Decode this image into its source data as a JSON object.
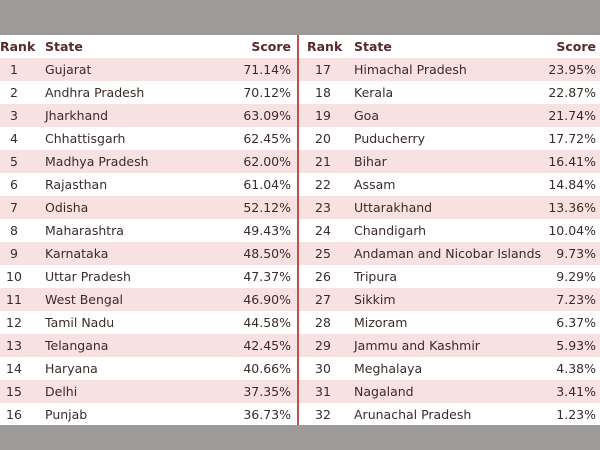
{
  "tables": [
    {
      "header": [
        "Rank",
        "State",
        "Score"
      ],
      "rows": [
        [
          "1",
          "Gujarat",
          "71.14%"
        ],
        [
          "2",
          "Andhra Pradesh",
          "70.12%"
        ],
        [
          "3",
          "Jharkhand",
          "63.09%"
        ],
        [
          "4",
          "Chhattisgarh",
          "62.45%"
        ],
        [
          "5",
          "Madhya Pradesh",
          "62.00%"
        ],
        [
          "6",
          "Rajasthan",
          "61.04%"
        ],
        [
          "7",
          "Odisha",
          "52.12%"
        ],
        [
          "8",
          "Maharashtra",
          "49.43%"
        ],
        [
          "9",
          "Karnataka",
          "48.50%"
        ],
        [
          "10",
          "Uttar Pradesh",
          "47.37%"
        ],
        [
          "11",
          "West Bengal",
          "46.90%"
        ],
        [
          "12",
          "Tamil Nadu",
          "44.58%"
        ],
        [
          "13",
          "Telangana",
          "42.45%"
        ],
        [
          "14",
          "Haryana",
          "40.66%"
        ],
        [
          "15",
          "Delhi",
          "37.35%"
        ],
        [
          "16",
          "Punjab",
          "36.73%"
        ]
      ]
    },
    {
      "header": [
        "Rank",
        "State",
        "Score"
      ],
      "rows": [
        [
          "17",
          "Himachal Pradesh",
          "23.95%"
        ],
        [
          "18",
          "Kerala",
          "22.87%"
        ],
        [
          "19",
          "Goa",
          "21.74%"
        ],
        [
          "20",
          "Puducherry",
          "17.72%"
        ],
        [
          "21",
          "Bihar",
          "16.41%"
        ],
        [
          "22",
          "Assam",
          "14.84%"
        ],
        [
          "23",
          "Uttarakhand",
          "13.36%"
        ],
        [
          "24",
          "Chandigarh",
          "10.04%"
        ],
        [
          "25",
          "Andaman and Nicobar Islands",
          "9.73%"
        ],
        [
          "26",
          "Tripura",
          "9.29%"
        ],
        [
          "27",
          "Sikkim",
          "7.23%"
        ],
        [
          "28",
          "Mizoram",
          "6.37%"
        ],
        [
          "29",
          "Jammu and Kashmir",
          "5.93%"
        ],
        [
          "30",
          "Meghalaya",
          "4.38%"
        ],
        [
          "31",
          "Nagaland",
          "3.41%"
        ],
        [
          "32",
          "Arunachal Pradesh",
          "1.23%"
        ]
      ]
    }
  ]
}
